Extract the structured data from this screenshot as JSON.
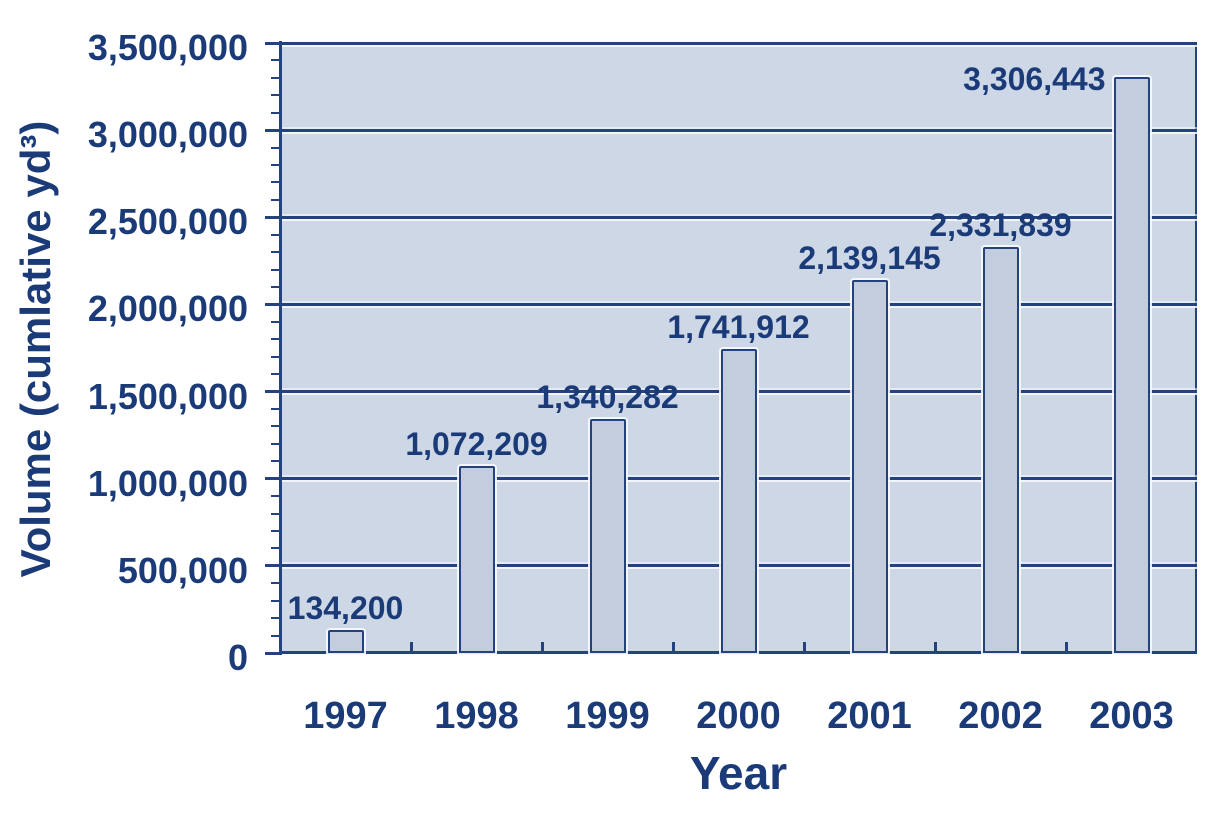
{
  "chart_data": {
    "type": "bar",
    "title": "",
    "xlabel": "Year",
    "ylabel": "Volume (cumlative yd³)",
    "categories": [
      "1997",
      "1998",
      "1999",
      "2000",
      "2001",
      "2002",
      "2003"
    ],
    "values": [
      134200,
      1072209,
      1340282,
      1741912,
      2139145,
      2331839,
      3306443
    ],
    "value_labels": [
      "134,200",
      "1,072,209",
      "1,340,282",
      "1,741,912",
      "2,139,145",
      "2,331,839",
      "3,306,443"
    ],
    "ylim": [
      0,
      3500000
    ],
    "ytick_step": 500000,
    "ytick_labels": [
      "0",
      "500,000",
      "1,000,000",
      "1,500,000",
      "2,000,000",
      "2,500,000",
      "3,000,000",
      "3,500,000"
    ],
    "yminor_tick_step": 100000,
    "grid": "horizontal-major",
    "legend": "none",
    "colors": {
      "text": "#1a3a78",
      "line": "#24427e",
      "plot_background": "#cdd7e6",
      "bar_fill": "#c4cddd",
      "emboss_highlight": "#f8fbff",
      "page_background": "#ffffff"
    }
  }
}
